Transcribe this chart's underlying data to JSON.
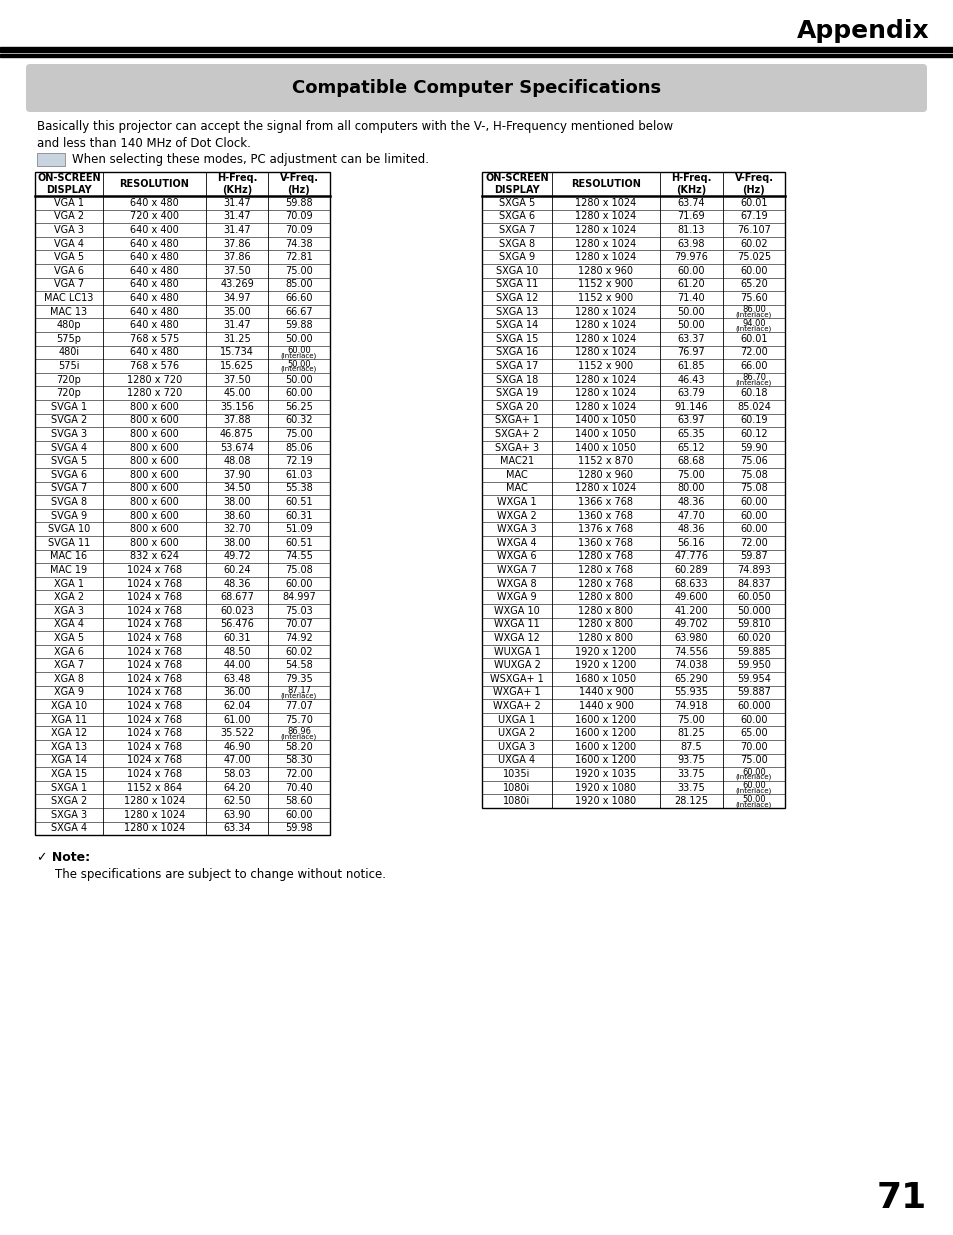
{
  "title": "Compatible Computer Specifications",
  "appendix_label": "Appendix",
  "intro_text": "Basically this projector can accept the signal from all computers with the V-, H-Frequency mentioned below\nand less than 140 MHz of Dot Clock.",
  "legend_text": "When selecting these modes, PC adjustment can be limited.",
  "note_text": "The specifications are subject to change without notice.",
  "left_table": {
    "headers": [
      "ON-SCREEN\nDISPLAY",
      "RESOLUTION",
      "H-Freq.\n(KHz)",
      "V-Freq.\n(Hz)"
    ],
    "rows": [
      [
        "VGA 1",
        "640 x 480",
        "31.47",
        "59.88"
      ],
      [
        "VGA 2",
        "720 x 400",
        "31.47",
        "70.09"
      ],
      [
        "VGA 3",
        "640 x 400",
        "31.47",
        "70.09"
      ],
      [
        "VGA 4",
        "640 x 480",
        "37.86",
        "74.38"
      ],
      [
        "VGA 5",
        "640 x 480",
        "37.86",
        "72.81"
      ],
      [
        "VGA 6",
        "640 x 480",
        "37.50",
        "75.00"
      ],
      [
        "VGA 7",
        "640 x 480",
        "43.269",
        "85.00"
      ],
      [
        "MAC LC13",
        "640 x 480",
        "34.97",
        "66.60"
      ],
      [
        "MAC 13",
        "640 x 480",
        "35.00",
        "66.67"
      ],
      [
        "480p",
        "640 x 480",
        "31.47",
        "59.88"
      ],
      [
        "575p",
        "768 x 575",
        "31.25",
        "50.00"
      ],
      [
        "480i",
        "640 x 480",
        "15.734",
        "60.00\n(Interlace)"
      ],
      [
        "575i",
        "768 x 576",
        "15.625",
        "50.00\n(Interlace)"
      ],
      [
        "720p",
        "1280 x 720",
        "37.50",
        "50.00"
      ],
      [
        "720p",
        "1280 x 720",
        "45.00",
        "60.00"
      ],
      [
        "SVGA 1",
        "800 x 600",
        "35.156",
        "56.25"
      ],
      [
        "SVGA 2",
        "800 x 600",
        "37.88",
        "60.32"
      ],
      [
        "SVGA 3",
        "800 x 600",
        "46.875",
        "75.00"
      ],
      [
        "SVGA 4",
        "800 x 600",
        "53.674",
        "85.06"
      ],
      [
        "SVGA 5",
        "800 x 600",
        "48.08",
        "72.19"
      ],
      [
        "SVGA 6",
        "800 x 600",
        "37.90",
        "61.03"
      ],
      [
        "SVGA 7",
        "800 x 600",
        "34.50",
        "55.38"
      ],
      [
        "SVGA 8",
        "800 x 600",
        "38.00",
        "60.51"
      ],
      [
        "SVGA 9",
        "800 x 600",
        "38.60",
        "60.31"
      ],
      [
        "SVGA 10",
        "800 x 600",
        "32.70",
        "51.09"
      ],
      [
        "SVGA 11",
        "800 x 600",
        "38.00",
        "60.51"
      ],
      [
        "MAC 16",
        "832 x 624",
        "49.72",
        "74.55"
      ],
      [
        "MAC 19",
        "1024 x 768",
        "60.24",
        "75.08"
      ],
      [
        "XGA 1",
        "1024 x 768",
        "48.36",
        "60.00"
      ],
      [
        "XGA 2",
        "1024 x 768",
        "68.677",
        "84.997"
      ],
      [
        "XGA 3",
        "1024 x 768",
        "60.023",
        "75.03"
      ],
      [
        "XGA 4",
        "1024 x 768",
        "56.476",
        "70.07"
      ],
      [
        "XGA 5",
        "1024 x 768",
        "60.31",
        "74.92"
      ],
      [
        "XGA 6",
        "1024 x 768",
        "48.50",
        "60.02"
      ],
      [
        "XGA 7",
        "1024 x 768",
        "44.00",
        "54.58"
      ],
      [
        "XGA 8",
        "1024 x 768",
        "63.48",
        "79.35"
      ],
      [
        "XGA 9",
        "1024 x 768",
        "36.00",
        "87.17\n(Interlace)"
      ],
      [
        "XGA 10",
        "1024 x 768",
        "62.04",
        "77.07"
      ],
      [
        "XGA 11",
        "1024 x 768",
        "61.00",
        "75.70"
      ],
      [
        "XGA 12",
        "1024 x 768",
        "35.522",
        "86.96\n(Interlace)"
      ],
      [
        "XGA 13",
        "1024 x 768",
        "46.90",
        "58.20"
      ],
      [
        "XGA 14",
        "1024 x 768",
        "47.00",
        "58.30"
      ],
      [
        "XGA 15",
        "1024 x 768",
        "58.03",
        "72.00"
      ],
      [
        "SXGA 1",
        "1152 x 864",
        "64.20",
        "70.40"
      ],
      [
        "SXGA 2",
        "1280 x 1024",
        "62.50",
        "58.60"
      ],
      [
        "SXGA 3",
        "1280 x 1024",
        "63.90",
        "60.00"
      ],
      [
        "SXGA 4",
        "1280 x 1024",
        "63.34",
        "59.98"
      ]
    ]
  },
  "right_table": {
    "headers": [
      "ON-SCREEN\nDISPLAY",
      "RESOLUTION",
      "H-Freq.\n(KHz)",
      "V-Freq.\n(Hz)"
    ],
    "rows": [
      [
        "SXGA 5",
        "1280 x 1024",
        "63.74",
        "60.01"
      ],
      [
        "SXGA 6",
        "1280 x 1024",
        "71.69",
        "67.19"
      ],
      [
        "SXGA 7",
        "1280 x 1024",
        "81.13",
        "76.107"
      ],
      [
        "SXGA 8",
        "1280 x 1024",
        "63.98",
        "60.02"
      ],
      [
        "SXGA 9",
        "1280 x 1024",
        "79.976",
        "75.025"
      ],
      [
        "SXGA 10",
        "1280 x 960",
        "60.00",
        "60.00"
      ],
      [
        "SXGA 11",
        "1152 x 900",
        "61.20",
        "65.20"
      ],
      [
        "SXGA 12",
        "1152 x 900",
        "71.40",
        "75.60"
      ],
      [
        "SXGA 13",
        "1280 x 1024",
        "50.00",
        "86.00\n(Interlace)"
      ],
      [
        "SXGA 14",
        "1280 x 1024",
        "50.00",
        "94.00\n(Interlace)"
      ],
      [
        "SXGA 15",
        "1280 x 1024",
        "63.37",
        "60.01"
      ],
      [
        "SXGA 16",
        "1280 x 1024",
        "76.97",
        "72.00"
      ],
      [
        "SXGA 17",
        "1152 x 900",
        "61.85",
        "66.00"
      ],
      [
        "SXGA 18",
        "1280 x 1024",
        "46.43",
        "86.70\n(Interlace)"
      ],
      [
        "SXGA 19",
        "1280 x 1024",
        "63.79",
        "60.18"
      ],
      [
        "SXGA 20",
        "1280 x 1024",
        "91.146",
        "85.024"
      ],
      [
        "SXGA+ 1",
        "1400 x 1050",
        "63.97",
        "60.19"
      ],
      [
        "SXGA+ 2",
        "1400 x 1050",
        "65.35",
        "60.12"
      ],
      [
        "SXGA+ 3",
        "1400 x 1050",
        "65.12",
        "59.90"
      ],
      [
        "MAC21",
        "1152 x 870",
        "68.68",
        "75.06"
      ],
      [
        "MAC",
        "1280 x 960",
        "75.00",
        "75.08"
      ],
      [
        "MAC",
        "1280 x 1024",
        "80.00",
        "75.08"
      ],
      [
        "WXGA 1",
        "1366 x 768",
        "48.36",
        "60.00"
      ],
      [
        "WXGA 2",
        "1360 x 768",
        "47.70",
        "60.00"
      ],
      [
        "WXGA 3",
        "1376 x 768",
        "48.36",
        "60.00"
      ],
      [
        "WXGA 4",
        "1360 x 768",
        "56.16",
        "72.00"
      ],
      [
        "WXGA 6",
        "1280 x 768",
        "47.776",
        "59.87"
      ],
      [
        "WXGA 7",
        "1280 x 768",
        "60.289",
        "74.893"
      ],
      [
        "WXGA 8",
        "1280 x 768",
        "68.633",
        "84.837"
      ],
      [
        "WXGA 9",
        "1280 x 800",
        "49.600",
        "60.050"
      ],
      [
        "WXGA 10",
        "1280 x 800",
        "41.200",
        "50.000"
      ],
      [
        "WXGA 11",
        "1280 x 800",
        "49.702",
        "59.810"
      ],
      [
        "WXGA 12",
        "1280 x 800",
        "63.980",
        "60.020"
      ],
      [
        "WUXGA 1",
        "1920 x 1200",
        "74.556",
        "59.885"
      ],
      [
        "WUXGA 2",
        "1920 x 1200",
        "74.038",
        "59.950"
      ],
      [
        "WSXGA+ 1",
        "1680 x 1050",
        "65.290",
        "59.954"
      ],
      [
        "WXGA+ 1",
        "1440 x 900",
        "55.935",
        "59.887"
      ],
      [
        "WXGA+ 2",
        "1440 x 900",
        "74.918",
        "60.000"
      ],
      [
        "UXGA 1",
        "1600 x 1200",
        "75.00",
        "60.00"
      ],
      [
        "UXGA 2",
        "1600 x 1200",
        "81.25",
        "65.00"
      ],
      [
        "UXGA 3",
        "1600 x 1200",
        "87.5",
        "70.00"
      ],
      [
        "UXGA 4",
        "1600 x 1200",
        "93.75",
        "75.00"
      ],
      [
        "1035i",
        "1920 x 1035",
        "33.75",
        "60.00\n(Interlace)"
      ],
      [
        "1080i",
        "1920 x 1080",
        "33.75",
        "60.00\n(Interlace)"
      ],
      [
        "1080i",
        "1920 x 1080",
        "28.125",
        "50.00\n(Interlace)"
      ]
    ]
  },
  "bg_color": "#ffffff",
  "header_bar_color": "#c8c8c8",
  "legend_box_color": "#c8d4e0",
  "table_border_color": "#000000",
  "text_color": "#000000",
  "page_number": "71",
  "title_fontsize": 13,
  "appendix_fontsize": 18,
  "intro_fontsize": 8.5,
  "note_fontsize": 9,
  "table_header_fontsize": 7,
  "table_cell_fontsize": 7,
  "interlace_main_fontsize": 6,
  "interlace_sub_fontsize": 5
}
